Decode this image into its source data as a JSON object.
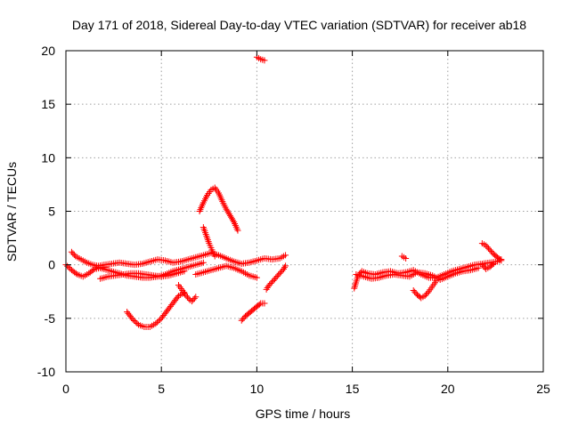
{
  "chart_data": {
    "type": "scatter",
    "title": "Day 171 of 2018, Sidereal Day-to-day VTEC variation (SDTVAR) for receiver ab18",
    "xlabel": "GPS time / hours",
    "ylabel": "SDTVAR / TECUs",
    "xlim": [
      0,
      25
    ],
    "ylim": [
      -10,
      20
    ],
    "xticks": [
      0,
      5,
      10,
      15,
      20,
      25
    ],
    "yticks": [
      -10,
      -5,
      0,
      5,
      10,
      15,
      20
    ],
    "grid": true,
    "marker": "+",
    "series": [
      {
        "name": "SDTVAR",
        "color": "#ff0000",
        "segments": [
          [
            [
              0.0,
              0.0
            ],
            [
              0.3,
              -0.5
            ],
            [
              0.6,
              -0.9
            ],
            [
              0.9,
              -1.1
            ],
            [
              1.2,
              -0.8
            ],
            [
              1.5,
              -0.4
            ],
            [
              1.8,
              -0.3
            ],
            [
              2.1,
              -0.2
            ]
          ],
          [
            [
              0.3,
              1.2
            ],
            [
              0.5,
              0.8
            ],
            [
              0.8,
              0.5
            ],
            [
              1.1,
              0.2
            ],
            [
              1.4,
              0.0
            ],
            [
              1.7,
              -0.1
            ],
            [
              2.0,
              0.0
            ],
            [
              2.4,
              0.1
            ],
            [
              2.8,
              0.2
            ],
            [
              3.2,
              0.1
            ],
            [
              3.6,
              0.0
            ],
            [
              4.0,
              0.1
            ],
            [
              4.4,
              0.3
            ],
            [
              4.8,
              0.5
            ],
            [
              5.2,
              0.4
            ],
            [
              5.6,
              0.2
            ],
            [
              6.0,
              0.3
            ],
            [
              6.4,
              0.5
            ],
            [
              6.8,
              0.7
            ],
            [
              7.2,
              0.9
            ],
            [
              7.6,
              1.1
            ],
            [
              8.0,
              0.9
            ],
            [
              8.4,
              0.6
            ],
            [
              8.8,
              0.3
            ],
            [
              9.2,
              0.1
            ],
            [
              9.6,
              0.2
            ],
            [
              10.0,
              0.4
            ],
            [
              10.4,
              0.6
            ],
            [
              10.8,
              0.5
            ],
            [
              11.2,
              0.6
            ],
            [
              11.5,
              0.9
            ]
          ],
          [
            [
              1.6,
              -0.2
            ],
            [
              2.0,
              -0.4
            ],
            [
              2.4,
              -0.6
            ],
            [
              2.8,
              -0.8
            ],
            [
              3.2,
              -1.0
            ],
            [
              3.6,
              -1.1
            ],
            [
              4.0,
              -1.2
            ],
            [
              4.4,
              -1.2
            ],
            [
              4.8,
              -1.1
            ],
            [
              5.2,
              -0.9
            ],
            [
              5.6,
              -0.6
            ],
            [
              6.0,
              -0.4
            ],
            [
              6.4,
              -0.2
            ],
            [
              6.8,
              0.0
            ],
            [
              7.2,
              0.2
            ]
          ],
          [
            [
              1.8,
              -1.3
            ],
            [
              2.2,
              -1.1
            ],
            [
              2.6,
              -1.0
            ],
            [
              3.0,
              -0.9
            ],
            [
              3.4,
              -0.8
            ],
            [
              3.8,
              -0.8
            ],
            [
              4.2,
              -0.9
            ],
            [
              4.6,
              -1.0
            ],
            [
              5.0,
              -1.1
            ],
            [
              5.4,
              -1.0
            ],
            [
              5.8,
              -0.8
            ],
            [
              6.2,
              -0.6
            ]
          ],
          [
            [
              3.2,
              -4.4
            ],
            [
              3.5,
              -5.1
            ],
            [
              3.8,
              -5.6
            ],
            [
              4.1,
              -5.8
            ],
            [
              4.4,
              -5.8
            ],
            [
              4.7,
              -5.5
            ],
            [
              5.0,
              -5.0
            ],
            [
              5.3,
              -4.3
            ],
            [
              5.6,
              -3.6
            ],
            [
              5.9,
              -2.9
            ],
            [
              6.2,
              -2.6
            ]
          ],
          [
            [
              5.9,
              -1.9
            ],
            [
              6.1,
              -2.4
            ],
            [
              6.3,
              -2.9
            ],
            [
              6.5,
              -3.3
            ],
            [
              6.6,
              -3.4
            ],
            [
              6.8,
              -3.0
            ]
          ],
          [
            [
              7.0,
              5.0
            ],
            [
              7.2,
              5.8
            ],
            [
              7.4,
              6.5
            ],
            [
              7.6,
              7.0
            ],
            [
              7.8,
              7.2
            ],
            [
              8.0,
              6.7
            ],
            [
              8.2,
              5.9
            ],
            [
              8.4,
              5.2
            ],
            [
              8.6,
              4.6
            ],
            [
              8.8,
              4.0
            ],
            [
              9.0,
              3.2
            ]
          ],
          [
            [
              7.2,
              3.5
            ],
            [
              7.3,
              3.0
            ],
            [
              7.4,
              2.5
            ],
            [
              7.5,
              2.0
            ],
            [
              7.6,
              1.6
            ],
            [
              7.7,
              1.2
            ],
            [
              7.8,
              0.8
            ]
          ],
          [
            [
              6.8,
              -0.9
            ],
            [
              7.2,
              -0.7
            ],
            [
              7.6,
              -0.5
            ],
            [
              8.0,
              -0.3
            ],
            [
              8.4,
              -0.1
            ],
            [
              8.8,
              -0.3
            ],
            [
              9.2,
              -0.6
            ],
            [
              9.6,
              -1.0
            ],
            [
              10.0,
              -1.2
            ]
          ],
          [
            [
              9.2,
              -5.2
            ],
            [
              9.4,
              -4.8
            ],
            [
              9.6,
              -4.5
            ],
            [
              9.8,
              -4.2
            ],
            [
              10.0,
              -3.9
            ],
            [
              10.2,
              -3.6
            ],
            [
              10.4,
              -3.6
            ]
          ],
          [
            [
              10.5,
              -2.3
            ],
            [
              10.6,
              -2.0
            ],
            [
              10.8,
              -1.6
            ],
            [
              11.0,
              -1.2
            ],
            [
              11.2,
              -0.8
            ],
            [
              11.4,
              -0.4
            ],
            [
              11.5,
              -0.1
            ]
          ],
          [
            [
              10.0,
              19.4
            ],
            [
              10.2,
              19.2
            ],
            [
              10.4,
              19.1
            ]
          ],
          [
            [
              15.1,
              -2.2
            ],
            [
              15.3,
              -1.0
            ],
            [
              15.5,
              -0.6
            ],
            [
              15.8,
              -0.8
            ],
            [
              16.2,
              -0.9
            ],
            [
              16.6,
              -0.7
            ],
            [
              17.0,
              -0.6
            ],
            [
              17.4,
              -0.8
            ],
            [
              17.8,
              -0.7
            ],
            [
              18.2,
              -0.5
            ],
            [
              18.6,
              -0.9
            ],
            [
              19.0,
              -1.2
            ],
            [
              19.4,
              -1.2
            ],
            [
              19.8,
              -0.9
            ],
            [
              20.2,
              -0.6
            ],
            [
              20.6,
              -0.4
            ],
            [
              21.0,
              -0.2
            ],
            [
              21.4,
              0.0
            ],
            [
              21.8,
              0.1
            ],
            [
              22.2,
              0.2
            ],
            [
              22.6,
              0.3
            ],
            [
              22.8,
              0.5
            ]
          ],
          [
            [
              15.2,
              -0.9
            ],
            [
              15.6,
              -1.1
            ],
            [
              16.0,
              -1.3
            ],
            [
              16.4,
              -1.2
            ],
            [
              16.8,
              -1.0
            ],
            [
              17.2,
              -0.9
            ],
            [
              17.6,
              -1.0
            ],
            [
              18.0,
              -1.1
            ],
            [
              18.4,
              -0.7
            ],
            [
              18.8,
              -0.8
            ],
            [
              19.2,
              -1.0
            ],
            [
              19.6,
              -1.4
            ],
            [
              20.0,
              -1.1
            ],
            [
              20.4,
              -0.8
            ],
            [
              20.8,
              -0.6
            ],
            [
              21.2,
              -0.5
            ],
            [
              21.6,
              -0.3
            ]
          ],
          [
            [
              17.6,
              0.8
            ],
            [
              17.8,
              0.6
            ]
          ],
          [
            [
              18.2,
              -2.4
            ],
            [
              18.4,
              -2.8
            ],
            [
              18.6,
              -3.1
            ],
            [
              18.8,
              -2.9
            ],
            [
              19.0,
              -2.5
            ],
            [
              19.2,
              -2.0
            ],
            [
              19.4,
              -1.5
            ]
          ],
          [
            [
              21.8,
              2.0
            ],
            [
              22.0,
              1.8
            ],
            [
              22.2,
              1.4
            ],
            [
              22.4,
              1.0
            ],
            [
              22.6,
              0.7
            ],
            [
              22.8,
              0.4
            ]
          ],
          [
            [
              21.8,
              0.0
            ],
            [
              22.0,
              -0.4
            ],
            [
              22.2,
              -0.2
            ],
            [
              22.4,
              0.1
            ]
          ]
        ]
      }
    ]
  }
}
